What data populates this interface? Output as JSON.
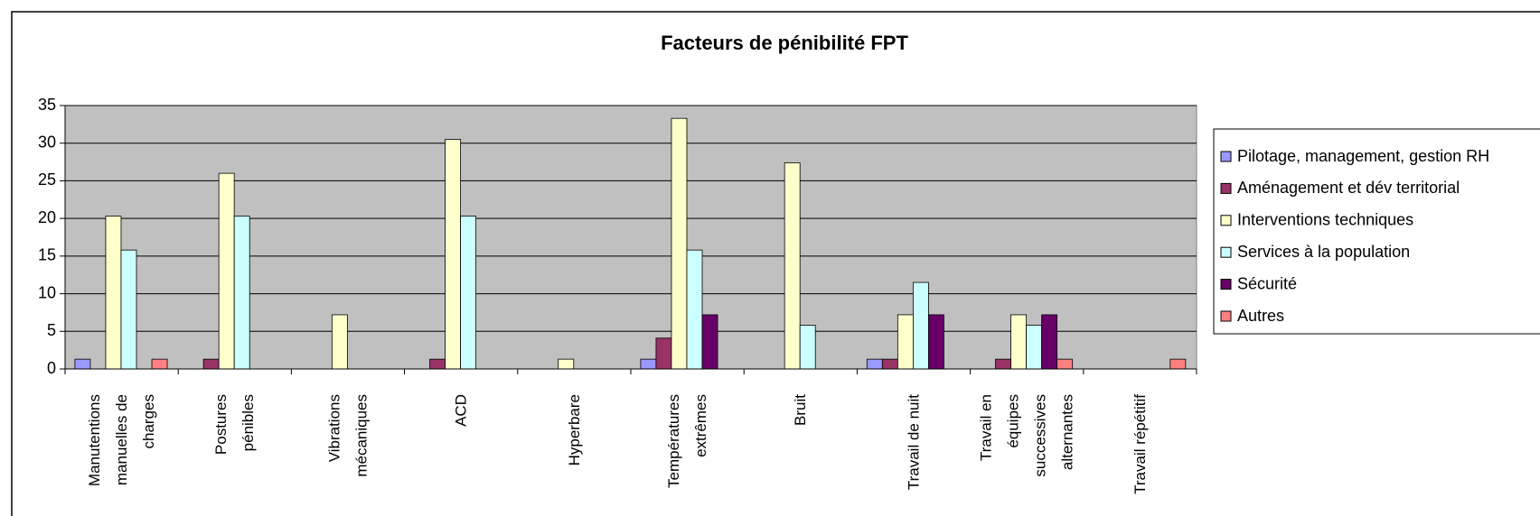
{
  "chart_data": {
    "type": "bar",
    "title": "Facteurs de pénibilité FPT",
    "categories": [
      "Manutentions manuelles de charges",
      "Postures pénibles",
      "Vibrations mécaniques",
      "ACD",
      "Hyperbare",
      "Températures extrêmes",
      "Bruit",
      "Travail de nuit",
      "Travail en équipes successives alternantes",
      "Travail répétitif"
    ],
    "series": [
      {
        "name": "Pilotage, management, gestion RH",
        "color": "#9999FF",
        "values": [
          1.3,
          0,
          0,
          0,
          0,
          1.3,
          0,
          1.3,
          0,
          0
        ]
      },
      {
        "name": "Aménagement et dév territorial",
        "color": "#993366",
        "values": [
          0,
          1.3,
          0,
          1.3,
          0,
          4.1,
          0,
          1.3,
          1.3,
          0
        ]
      },
      {
        "name": "Interventions techniques",
        "color": "#FFFFCC",
        "values": [
          20.3,
          26,
          7.2,
          30.5,
          1.3,
          33.3,
          27.4,
          7.2,
          7.2,
          0
        ]
      },
      {
        "name": "Services à la population",
        "color": "#CCFFFF",
        "values": [
          15.8,
          20.3,
          0,
          20.3,
          0,
          15.8,
          5.8,
          11.5,
          5.8,
          0
        ]
      },
      {
        "name": "Sécurité",
        "color": "#660066",
        "values": [
          0,
          0,
          0,
          0,
          0,
          7.2,
          0,
          7.2,
          7.2,
          0
        ]
      },
      {
        "name": "Autres",
        "color": "#FF8080",
        "values": [
          1.3,
          0,
          0,
          0,
          0,
          0,
          0,
          0,
          1.3,
          1.3
        ]
      }
    ],
    "ylim": [
      0,
      35
    ],
    "yticks": [
      0,
      5,
      10,
      15,
      20,
      25,
      30,
      35
    ],
    "grid": true,
    "legend": "right"
  }
}
